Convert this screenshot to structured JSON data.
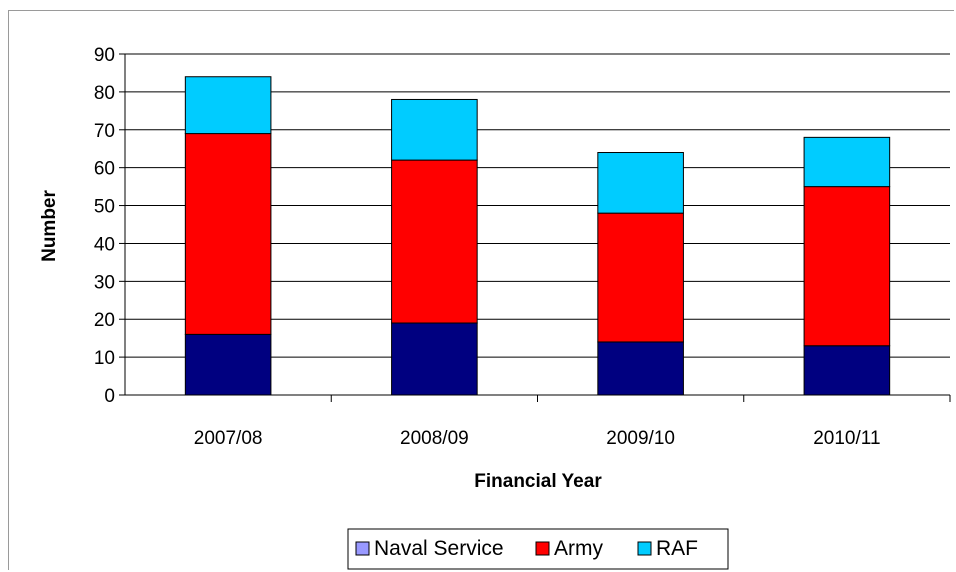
{
  "chart_data": {
    "type": "bar",
    "stacked": true,
    "title": "",
    "xlabel": "Financial Year",
    "ylabel": "Number",
    "categories": [
      "2007/08",
      "2008/09",
      "2009/10",
      "2010/11"
    ],
    "series": [
      {
        "name": "Naval Service",
        "values": [
          16,
          19,
          14,
          13
        ],
        "color": "#000080",
        "legend_color": "#9999ff"
      },
      {
        "name": "Army",
        "values": [
          53,
          43,
          34,
          42
        ],
        "color": "#ff0000",
        "legend_color": "#ff0000"
      },
      {
        "name": "RAF",
        "values": [
          15,
          16,
          16,
          13
        ],
        "color": "#00ccff",
        "legend_color": "#00ccff"
      }
    ],
    "ylim": [
      0,
      90
    ],
    "yticks": [
      0,
      10,
      20,
      30,
      40,
      50,
      60,
      70,
      80,
      90
    ],
    "grid": true,
    "legend_position": "bottom"
  }
}
